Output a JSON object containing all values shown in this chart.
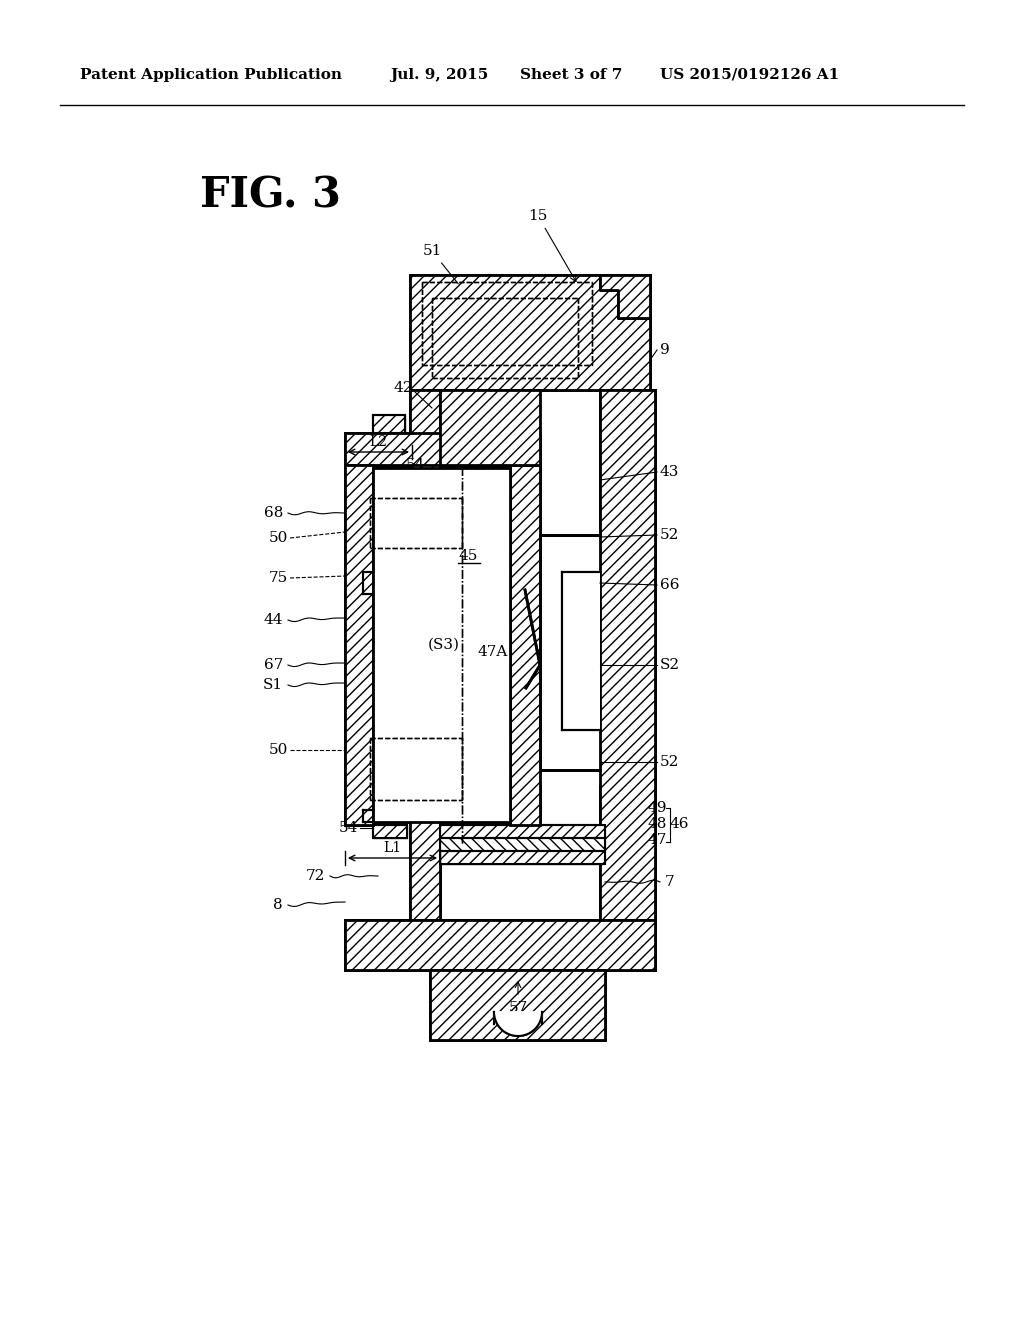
{
  "bg_color": "#ffffff",
  "line_color": "#000000",
  "header_text": "Patent Application Publication",
  "header_date": "Jul. 9, 2015",
  "header_sheet": "Sheet 3 of 7",
  "header_patent": "US 2015/0192126 A1",
  "fig_label": "FIG. 3"
}
